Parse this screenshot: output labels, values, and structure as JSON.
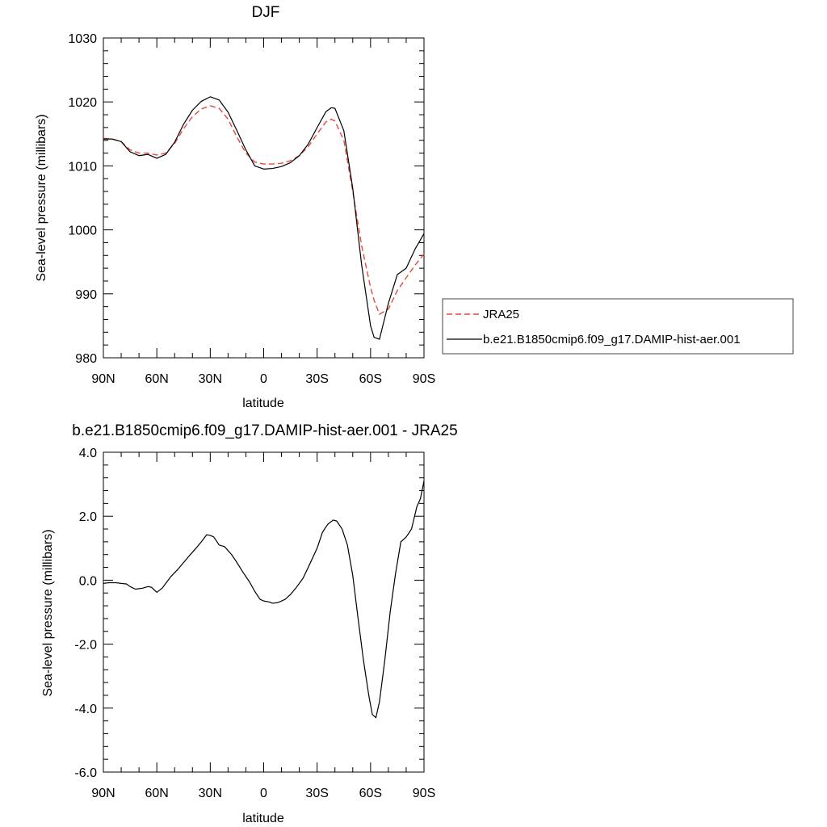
{
  "chart_data": [
    {
      "type": "line",
      "title": "DJF",
      "xlabel": "latitude",
      "ylabel": "Sea-level pressure (millibars)",
      "xlim": [
        90,
        -90
      ],
      "ylim": [
        980,
        1030
      ],
      "x_ticks": [
        90,
        60,
        30,
        0,
        -30,
        -60,
        -90
      ],
      "x_tick_labels": [
        "90N",
        "60N",
        "30N",
        "0",
        "30S",
        "60S",
        "90S"
      ],
      "y_ticks": [
        980,
        990,
        1000,
        1010,
        1020,
        1030
      ],
      "y_tick_labels": [
        "980",
        "990",
        "1000",
        "1010",
        "1020",
        "1030"
      ],
      "legend_position": "right",
      "series": [
        {
          "name": "JRA25",
          "color": "#e8473c",
          "style": "dashed",
          "x": [
            90,
            85,
            80,
            75,
            70,
            65,
            60,
            55,
            50,
            45,
            40,
            35,
            30,
            25,
            20,
            15,
            10,
            5,
            0,
            -5,
            -10,
            -15,
            -20,
            -25,
            -30,
            -35,
            -38,
            -40,
            -45,
            -50,
            -55,
            -60,
            -62,
            -65,
            -70,
            -75,
            -80,
            -85,
            -90
          ],
          "values": [
            1014.3,
            1014.2,
            1013.8,
            1012.5,
            1012.0,
            1012.0,
            1011.7,
            1012.0,
            1013.5,
            1015.8,
            1017.7,
            1018.9,
            1019.4,
            1019.0,
            1017.3,
            1014.5,
            1012.0,
            1010.6,
            1010.3,
            1010.3,
            1010.4,
            1010.8,
            1011.6,
            1013.0,
            1015.0,
            1016.9,
            1017.3,
            1017.0,
            1014.0,
            1006.0,
            997.5,
            991.0,
            989.0,
            986.8,
            987.6,
            990.5,
            992.5,
            994.5,
            996.2
          ]
        },
        {
          "name": "b.e21.B1850cmip6.f09_g17.DAMIP-hist-aer.001",
          "color": "#000000",
          "style": "solid",
          "x": [
            90,
            85,
            80,
            75,
            70,
            65,
            60,
            55,
            50,
            45,
            40,
            35,
            30,
            25,
            20,
            15,
            10,
            5,
            0,
            -5,
            -10,
            -15,
            -20,
            -25,
            -30,
            -35,
            -38,
            -40,
            -45,
            -50,
            -55,
            -60,
            -62,
            -65,
            -70,
            -75,
            -80,
            -85,
            -90
          ],
          "values": [
            1014.2,
            1014.2,
            1013.8,
            1012.2,
            1011.6,
            1011.8,
            1011.2,
            1011.8,
            1013.7,
            1016.5,
            1018.7,
            1020.1,
            1020.8,
            1020.3,
            1018.4,
            1015.5,
            1012.5,
            1010.0,
            1009.5,
            1009.6,
            1009.9,
            1010.5,
            1011.6,
            1013.4,
            1016.0,
            1018.5,
            1019.1,
            1019.0,
            1015.5,
            1006.5,
            994.5,
            985.0,
            983.2,
            982.9,
            988.5,
            993.0,
            994.0,
            997.0,
            999.4
          ]
        }
      ],
      "legend": [
        "JRA25",
        "b.e21.B1850cmip6.f09_g17.DAMIP-hist-aer.001"
      ]
    },
    {
      "type": "line",
      "title": "b.e21.B1850cmip6.f09_g17.DAMIP-hist-aer.001 - JRA25",
      "xlabel": "latitude",
      "ylabel": "Sea-level pressure (millibars)",
      "xlim": [
        90,
        -90
      ],
      "ylim": [
        -6.0,
        4.0
      ],
      "x_ticks": [
        90,
        60,
        30,
        0,
        -30,
        -60,
        -90
      ],
      "x_tick_labels": [
        "90N",
        "60N",
        "30N",
        "0",
        "30S",
        "60S",
        "90S"
      ],
      "y_ticks": [
        -6.0,
        -4.0,
        -2.0,
        0.0,
        2.0,
        4.0
      ],
      "y_tick_labels": [
        "-6.0",
        "-4.0",
        "-2.0",
        "0.0",
        "2.0",
        "4.0"
      ],
      "series": [
        {
          "color": "#000000",
          "style": "solid",
          "x": [
            90,
            87,
            83,
            80,
            77,
            75,
            72,
            68,
            65,
            63,
            60,
            57,
            55,
            52,
            48,
            45,
            42,
            38,
            35,
            32,
            30,
            28,
            25,
            22,
            18,
            15,
            12,
            8,
            5,
            2,
            0,
            -3,
            -5,
            -8,
            -12,
            -15,
            -18,
            -22,
            -25,
            -30,
            -33,
            -36,
            -39,
            -41,
            -44,
            -47,
            -50,
            -53,
            -56,
            -59,
            -61,
            -63,
            -65,
            -68,
            -71,
            -74,
            -77,
            -80,
            -83,
            -86,
            -88,
            -90
          ],
          "values": [
            -0.1,
            -0.08,
            -0.08,
            -0.1,
            -0.12,
            -0.2,
            -0.28,
            -0.25,
            -0.2,
            -0.22,
            -0.38,
            -0.25,
            -0.1,
            0.12,
            0.35,
            0.55,
            0.75,
            1.0,
            1.2,
            1.42,
            1.4,
            1.35,
            1.1,
            1.05,
            0.8,
            0.55,
            0.28,
            -0.05,
            -0.35,
            -0.6,
            -0.65,
            -0.68,
            -0.72,
            -0.7,
            -0.6,
            -0.45,
            -0.25,
            0.05,
            0.4,
            1.0,
            1.5,
            1.75,
            1.88,
            1.85,
            1.6,
            1.1,
            0.15,
            -1.2,
            -2.5,
            -3.6,
            -4.2,
            -4.3,
            -3.8,
            -2.5,
            -1.0,
            0.2,
            1.2,
            1.35,
            1.6,
            2.3,
            2.55,
            3.1
          ]
        }
      ]
    }
  ]
}
